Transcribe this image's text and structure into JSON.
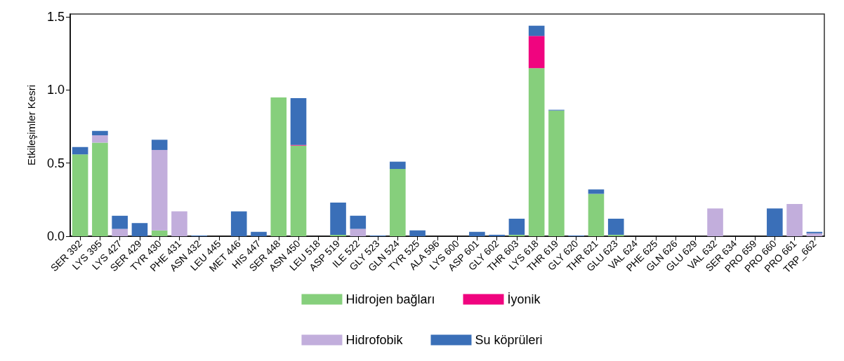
{
  "chart_data": {
    "type": "bar",
    "stacked": true,
    "ylabel": "Etkileşimler Kesri",
    "categories": [
      "SER 392",
      "LYS 395",
      "LYS 427",
      "SER 429",
      "TYR 430",
      "PHE 431",
      "ASN 432",
      "LEU 445",
      "MET 446",
      "HIS 447",
      "SER 448",
      "ASN 450",
      "LEU 518",
      "ASP 519",
      "ILE 522",
      "GLY 523",
      "GLN 524",
      "TYR 525",
      "ALA 596",
      "LYS 600",
      "ASP 601",
      "GLY 602",
      "THR 603",
      "LYS 618",
      "THR 619",
      "GLY 620",
      "THR 621",
      "GLU 623",
      "VAL 624",
      "PHE 625",
      "GLN 626",
      "GLU 629",
      "VAL 632",
      "SER 634",
      "PRO 659",
      "PRO 660",
      "PRO 661",
      "TRP_662"
    ],
    "series": [
      {
        "name": "Hidrojen bağları",
        "color": "#86cf7c",
        "values": [
          0.56,
          0.64,
          0,
          0,
          0.04,
          0,
          0,
          0,
          0,
          0,
          0.95,
          0.62,
          0,
          0.01,
          0,
          0,
          0.46,
          0,
          0,
          0,
          0,
          0,
          0.01,
          1.15,
          0.86,
          0,
          0.29,
          0.01,
          0,
          0,
          0,
          0,
          0,
          0,
          0,
          0,
          0,
          0
        ]
      },
      {
        "name": "İyonik",
        "color": "#f0047f",
        "values": [
          0,
          0,
          0,
          0,
          0,
          0,
          0,
          0,
          0,
          0,
          0,
          0.005,
          0,
          0,
          0,
          0,
          0,
          0,
          0,
          0,
          0,
          0,
          0,
          0.22,
          0,
          0,
          0,
          0,
          0,
          0,
          0,
          0,
          0,
          0,
          0,
          0,
          0,
          0
        ]
      },
      {
        "name": "Hidrofobik",
        "color": "#c2aedc",
        "values": [
          0,
          0.05,
          0.05,
          0,
          0.55,
          0.17,
          0,
          0,
          0,
          0,
          0,
          0,
          0,
          0,
          0.05,
          0,
          0,
          0,
          0,
          0,
          0,
          0,
          0,
          0,
          0,
          0,
          0,
          0,
          0,
          0,
          0,
          0,
          0.19,
          0,
          0,
          0,
          0.22,
          0.02
        ]
      },
      {
        "name": "Su köprüleri",
        "color": "#3a6fb8",
        "values": [
          0.05,
          0.03,
          0.09,
          0.09,
          0.07,
          0,
          0.005,
          0,
          0.17,
          0.03,
          0,
          0.32,
          0,
          0.22,
          0.09,
          0.005,
          0.05,
          0.04,
          0,
          0,
          0.03,
          0.01,
          0.11,
          0.07,
          0.005,
          0.005,
          0.03,
          0.11,
          0,
          0,
          0,
          0,
          0,
          0,
          0,
          0.19,
          0,
          0.01
        ]
      }
    ],
    "ylim": [
      0,
      1.52
    ],
    "yticks": [
      {
        "value": 0,
        "label": "0.0"
      },
      {
        "value": 0.5,
        "label": "0.5"
      },
      {
        "value": 1,
        "label": "1.0"
      },
      {
        "value": 1.5,
        "label": "1.5"
      }
    ],
    "grid": false,
    "legend": "bottom"
  }
}
